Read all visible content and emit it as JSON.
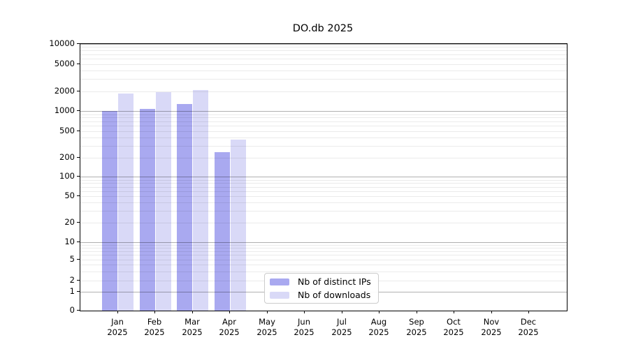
{
  "chart_data": {
    "type": "bar",
    "title": "DO.db 2025",
    "categories": [
      "Jan",
      "Feb",
      "Mar",
      "Apr",
      "May",
      "Jun",
      "Jul",
      "Aug",
      "Sep",
      "Oct",
      "Nov",
      "Dec"
    ],
    "year": "2025",
    "series": [
      {
        "name": "Nb of distinct IPs",
        "color": "#a9a9f0",
        "values": [
          1000,
          1080,
          1270,
          240,
          0,
          0,
          0,
          0,
          0,
          0,
          0,
          0
        ]
      },
      {
        "name": "Nb of downloads",
        "color": "#d9d9f7",
        "values": [
          1820,
          1950,
          2050,
          370,
          0,
          0,
          0,
          0,
          0,
          0,
          0,
          0
        ]
      }
    ],
    "xlabel": "",
    "ylabel": "",
    "yscale": "symlog",
    "ylim": [
      0,
      10000
    ],
    "ytick_labels": [
      "0",
      "1",
      "2",
      "5",
      "10",
      "20",
      "50",
      "100",
      "200",
      "500",
      "1000",
      "2000",
      "5000",
      "10000"
    ],
    "grid": "on",
    "legend_position": "lower center"
  }
}
